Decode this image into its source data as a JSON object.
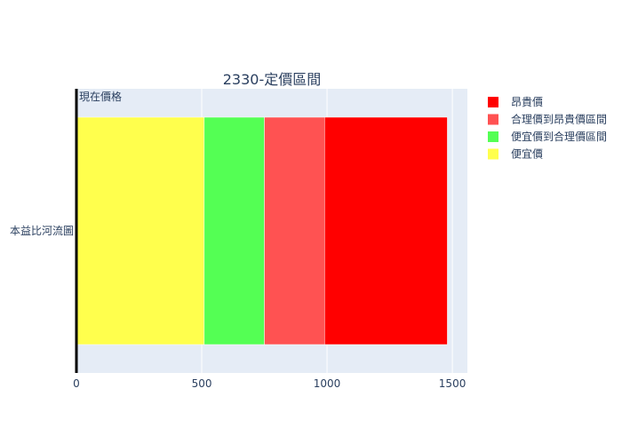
{
  "chart_data": {
    "type": "bar",
    "orientation": "horizontal",
    "barmode": "stack",
    "title": "2330-定價區間",
    "categories": [
      "本益比河流圖"
    ],
    "series": [
      {
        "name": "便宜價",
        "values": [
          510
        ],
        "color": "#ffff4d"
      },
      {
        "name": "便宜價到合理價區間",
        "values": [
          240
        ],
        "color": "#54ff54"
      },
      {
        "name": "合理價到昂貴價區間",
        "values": [
          240
        ],
        "color": "#ff5252"
      },
      {
        "name": "昂貴價",
        "values": [
          490
        ],
        "color": "#ff0000"
      }
    ],
    "xlim": [
      0,
      1560
    ],
    "xticks": [
      0,
      500,
      1000,
      1500
    ],
    "grid": true,
    "legend": {
      "position": "top-right"
    },
    "annotation": {
      "text": "現在價格",
      "x": 0,
      "color": "#000000"
    }
  }
}
